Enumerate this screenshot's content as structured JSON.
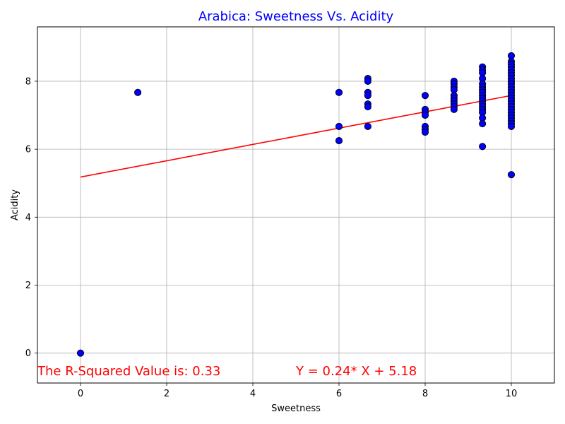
{
  "chart_data": {
    "type": "scatter",
    "title": "Arabica: Sweetness Vs. Acidity",
    "xlabel": "Sweetness",
    "ylabel": "Acidity",
    "xlim": [
      -1,
      11
    ],
    "ylim": [
      -0.88,
      9.6
    ],
    "xticks": [
      0,
      2,
      4,
      6,
      8,
      10
    ],
    "yticks": [
      0,
      2,
      4,
      6,
      8
    ],
    "grid": true,
    "colors": {
      "title": "#0000ff",
      "points": "#0000ff",
      "point_edge": "#000000",
      "fit_line": "#ff0000",
      "annotation": "#ff0000"
    },
    "points": [
      [
        0,
        0
      ],
      [
        1.33,
        7.67
      ],
      [
        6,
        7.67
      ],
      [
        6,
        6.67
      ],
      [
        6,
        6.25
      ],
      [
        6.67,
        8.08
      ],
      [
        6.67,
        8.0
      ],
      [
        6.67,
        7.67
      ],
      [
        6.67,
        7.58
      ],
      [
        6.67,
        7.33
      ],
      [
        6.67,
        7.25
      ],
      [
        6.67,
        6.67
      ],
      [
        8,
        7.58
      ],
      [
        8,
        7.17
      ],
      [
        8,
        7.08
      ],
      [
        8,
        7.0
      ],
      [
        8,
        6.67
      ],
      [
        8,
        6.58
      ],
      [
        8,
        6.5
      ],
      [
        8.67,
        8.0
      ],
      [
        8.67,
        7.92
      ],
      [
        8.67,
        7.83
      ],
      [
        8.67,
        7.75
      ],
      [
        8.67,
        7.58
      ],
      [
        8.67,
        7.5
      ],
      [
        8.67,
        7.42
      ],
      [
        8.67,
        7.33
      ],
      [
        8.67,
        7.25
      ],
      [
        8.67,
        7.17
      ],
      [
        9.33,
        8.42
      ],
      [
        9.33,
        8.33
      ],
      [
        9.33,
        8.25
      ],
      [
        9.33,
        8.08
      ],
      [
        9.33,
        7.92
      ],
      [
        9.33,
        7.83
      ],
      [
        9.33,
        7.75
      ],
      [
        9.33,
        7.67
      ],
      [
        9.33,
        7.58
      ],
      [
        9.33,
        7.5
      ],
      [
        9.33,
        7.42
      ],
      [
        9.33,
        7.33
      ],
      [
        9.33,
        7.25
      ],
      [
        9.33,
        7.17
      ],
      [
        9.33,
        7.08
      ],
      [
        9.33,
        6.92
      ],
      [
        9.33,
        6.75
      ],
      [
        9.33,
        6.08
      ],
      [
        10,
        8.75
      ],
      [
        10,
        8.58
      ],
      [
        10,
        8.5
      ],
      [
        10,
        8.42
      ],
      [
        10,
        8.33
      ],
      [
        10,
        8.25
      ],
      [
        10,
        8.17
      ],
      [
        10,
        8.08
      ],
      [
        10,
        8.0
      ],
      [
        10,
        7.92
      ],
      [
        10,
        7.83
      ],
      [
        10,
        7.75
      ],
      [
        10,
        7.67
      ],
      [
        10,
        7.58
      ],
      [
        10,
        7.5
      ],
      [
        10,
        7.42
      ],
      [
        10,
        7.33
      ],
      [
        10,
        7.25
      ],
      [
        10,
        7.17
      ],
      [
        10,
        7.08
      ],
      [
        10,
        7.0
      ],
      [
        10,
        6.92
      ],
      [
        10,
        6.83
      ],
      [
        10,
        6.75
      ],
      [
        10,
        6.67
      ],
      [
        10,
        5.25
      ]
    ],
    "fit_line": {
      "slope": 0.24,
      "intercept": 5.18,
      "x_range": [
        0,
        10
      ]
    },
    "annotations": {
      "r_squared": "The R-Squared Value is: 0.33",
      "equation": "Y = 0.24* X + 5.18"
    }
  }
}
